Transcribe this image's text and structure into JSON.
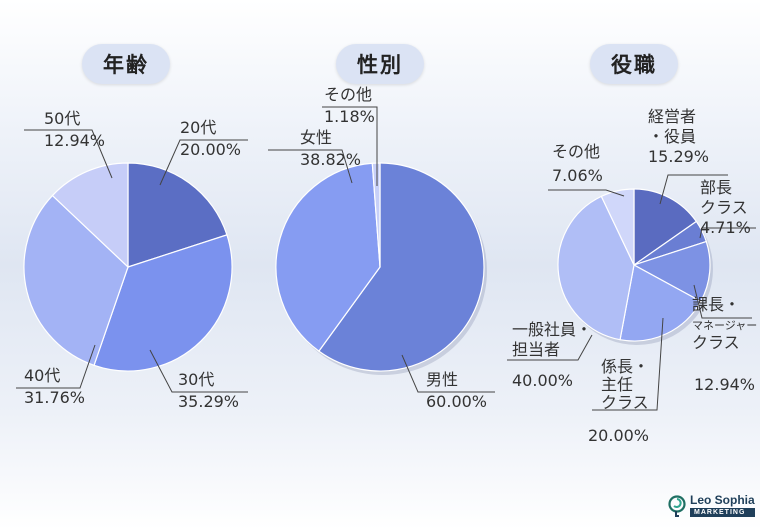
{
  "chart_data": [
    {
      "type": "pie",
      "title": "年齢",
      "series": [
        {
          "label": [
            "20代",
            "20.00%"
          ],
          "value": 20.0,
          "color": "#5b6ec4"
        },
        {
          "label": [
            "30代",
            "35.29%"
          ],
          "value": 35.29,
          "color": "#7b92ee"
        },
        {
          "label": [
            "40代",
            "31.76%"
          ],
          "value": 31.76,
          "color": "#a3b3f5"
        },
        {
          "label": [
            "50代",
            "12.94%"
          ],
          "value": 12.94,
          "color": "#c6cdf8"
        }
      ]
    },
    {
      "type": "pie",
      "title": "性別",
      "series": [
        {
          "label": [
            "男性",
            "60.00%"
          ],
          "value": 60.0,
          "color": "#6b82d8"
        },
        {
          "label": [
            "女性",
            "38.82%"
          ],
          "value": 38.82,
          "color": "#869cf2"
        },
        {
          "label": [
            "その他",
            "1.18%"
          ],
          "value": 1.18,
          "color": "#c7d0f8"
        }
      ]
    },
    {
      "type": "pie",
      "title": "役職",
      "series": [
        {
          "label": [
            "経営者",
            "・役員",
            "15.29%"
          ],
          "value": 15.29,
          "color": "#5a6bc0"
        },
        {
          "label": [
            "部長",
            "クラス",
            "4.71%"
          ],
          "value": 4.71,
          "color": "#6a7ed3"
        },
        {
          "label": [
            "課長・",
            "マネージャー",
            "クラス",
            "12.94%"
          ],
          "value": 12.94,
          "color": "#7d92e4"
        },
        {
          "label": [
            "係長・",
            "主任",
            "クラス",
            "20.00%"
          ],
          "value": 20.0,
          "color": "#93a7f2"
        },
        {
          "label": [
            "一般社員・",
            "担当者",
            "40.00%"
          ],
          "value": 40.0,
          "color": "#b0bef6"
        },
        {
          "label": [
            "その他",
            "7.06%"
          ],
          "value": 7.06,
          "color": "#d0d7fa"
        }
      ]
    }
  ],
  "logo": {
    "name": "Leo Sophia",
    "tag": "MARKETING"
  }
}
